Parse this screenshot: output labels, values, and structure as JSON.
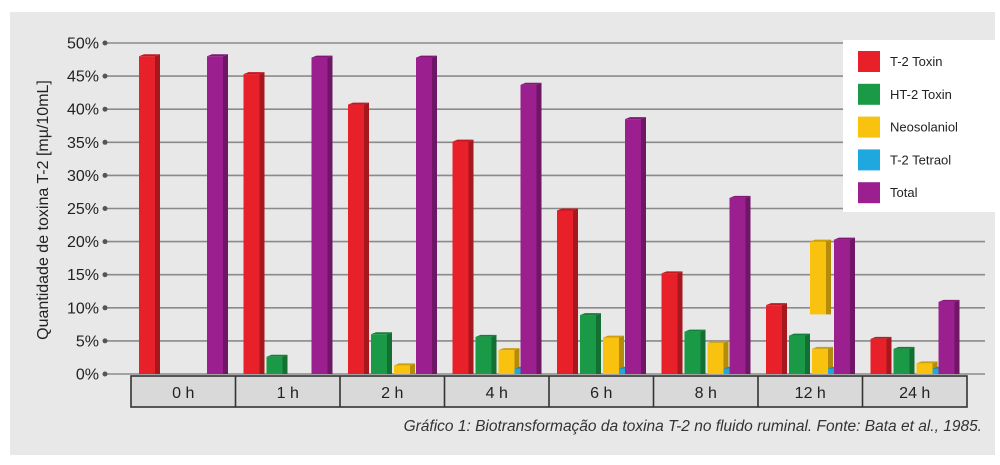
{
  "chart_data": {
    "type": "bar",
    "title": "",
    "ylabel": "Quantidade de toxina T-2 [mµ/10mL]",
    "xlabel": "",
    "categories": [
      "0 h",
      "1 h",
      "2 h",
      "4 h",
      "6 h",
      "8 h",
      "12 h",
      "24 h"
    ],
    "yticks": [
      "0%",
      "5%",
      "10%",
      "15%",
      "20%",
      "25%",
      "30%",
      "35%",
      "40%",
      "45%",
      "50%"
    ],
    "ylim": [
      0,
      50
    ],
    "grid": true,
    "legend_position": "top-right",
    "series": [
      {
        "name": "T-2 Toxin",
        "color": "#e8202a",
        "values": [
          48,
          45.3,
          40.7,
          35.1,
          24.7,
          15.2,
          10.4,
          5.3
        ]
      },
      {
        "name": "HT-2 Toxin",
        "color": "#1a9a46",
        "values": [
          0,
          2.6,
          6.0,
          5.6,
          8.9,
          6.4,
          5.8,
          3.8
        ]
      },
      {
        "name": "Neosolaniol",
        "color": "#f9c20f",
        "values": [
          0,
          0,
          1.3,
          3.6,
          5.5,
          4.7,
          3.8,
          1.6
        ]
      },
      {
        "name": "T-2 Tetraol",
        "color": "#1fa8e0",
        "values": [
          0,
          0,
          0,
          0.8,
          0.8,
          0.8,
          0.8,
          0.8
        ]
      },
      {
        "name": "Total",
        "color": "#9b1f8e",
        "values": [
          48,
          47.8,
          47.8,
          43.7,
          38.5,
          26.6,
          20.3,
          10.9
        ]
      }
    ],
    "annotation_floating_bar": {
      "series": "Neosolaniol",
      "category": "12 h",
      "from": 9,
      "to": 20
    }
  },
  "caption": "Gráfico 1: Biotransformação da toxina T-2 no fluido ruminal. Fonte: Bata et al., 1985."
}
